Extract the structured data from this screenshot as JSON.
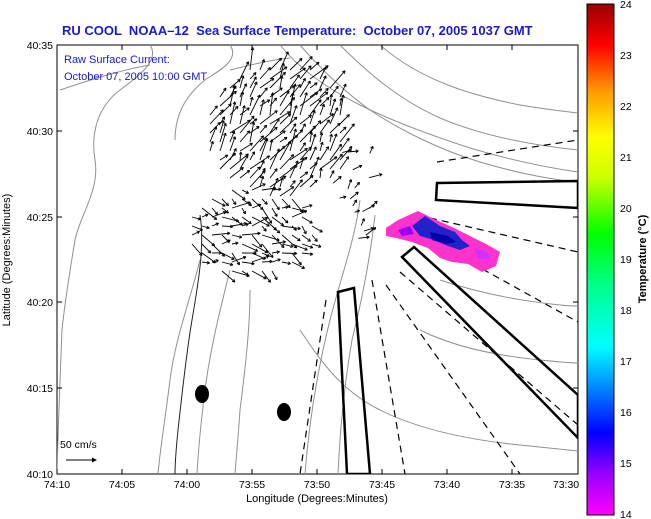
{
  "title": "RU COOL  NOAA–12  Sea Surface Temperature:  October 07, 2005 1037 GMT",
  "current_label_1": "Raw Surface Current:",
  "current_label_2": "October 07, 2005 10:00 GMT",
  "scale_label": "50 cm/s",
  "x_axis": {
    "label": "Longitude (Degrees:Minutes)",
    "ticks": [
      "74:10",
      "74:05",
      "74:00",
      "73:55",
      "73:50",
      "73:45",
      "73:40",
      "73:35",
      "73:30"
    ]
  },
  "y_axis": {
    "label": "Latitude (Degrees:Minutes)",
    "ticks": [
      "40:35",
      "40:30",
      "40:25",
      "40:20",
      "40:15",
      "40:10"
    ]
  },
  "colorbar": {
    "label": "Temperature (°C)",
    "min": 14,
    "max": 24,
    "ticks": [
      "24",
      "23",
      "22",
      "21",
      "20",
      "19",
      "18",
      "17",
      "16",
      "15",
      "14"
    ]
  },
  "colors": {
    "title": "#1a1acc",
    "contour": "#909090",
    "sst_warm": "#ff33cc",
    "sst_cool": "#2222cc"
  }
}
